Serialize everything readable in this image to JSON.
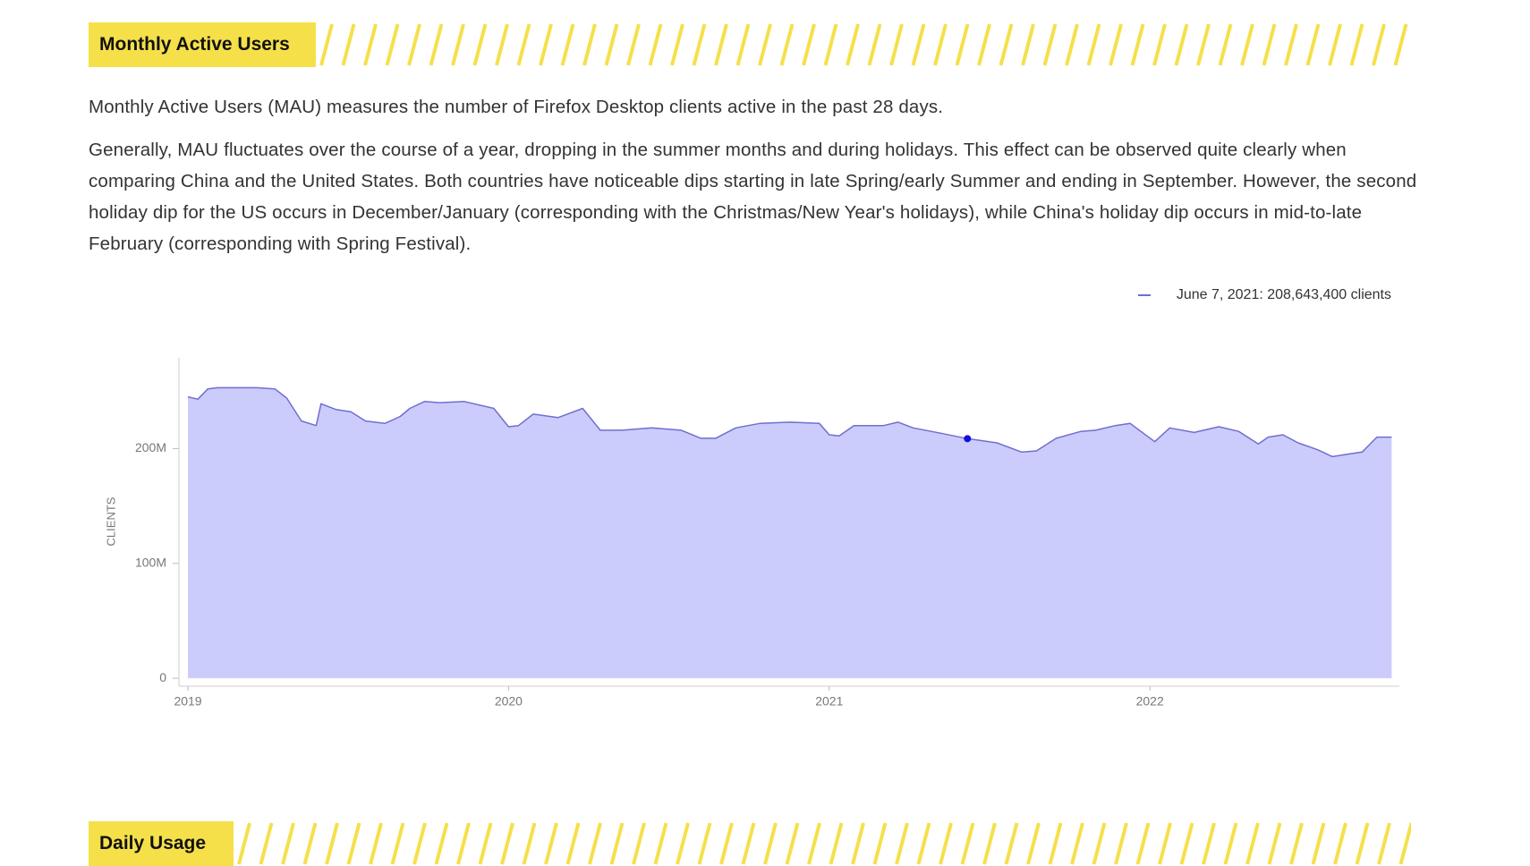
{
  "sections": [
    {
      "heading": "Monthly Active Users",
      "paragraphs": [
        "Monthly Active Users (MAU) measures the number of Firefox Desktop clients active in the past 28 days.",
        "Generally, MAU fluctuates over the course of a year, dropping in the summer months and during holidays. This effect can be observed quite clearly when comparing China and the United States. Both countries have noticeable dips starting in late Spring/early Summer and ending in September. However, the second holiday dip for the US occurs in December/January (corresponding with the Christmas/New Year's holidays), while China's holiday dip occurs in mid-to-late February (corresponding with Spring Festival)."
      ]
    },
    {
      "heading": "Daily Usage"
    }
  ],
  "chart_data": {
    "type": "area",
    "y_label": "CLIENTS",
    "highlight": {
      "label": "June 7, 2021: 208,643,400 clients",
      "x": 2021.431,
      "value": 208643400
    },
    "x": [
      2019.0,
      2019.031,
      2019.062,
      2019.092,
      2019.154,
      2019.215,
      2019.271,
      2019.308,
      2019.354,
      2019.4,
      2019.415,
      2019.462,
      2019.508,
      2019.554,
      2019.615,
      2019.662,
      2019.692,
      2019.738,
      2019.785,
      2019.862,
      2019.954,
      2020.0,
      2020.031,
      2020.077,
      2020.154,
      2020.231,
      2020.286,
      2020.354,
      2020.446,
      2020.538,
      2020.6,
      2020.646,
      2020.708,
      2020.785,
      2020.877,
      2020.969,
      2021.0,
      2021.031,
      2021.077,
      2021.169,
      2021.215,
      2021.262,
      2021.354,
      2021.431,
      2021.523,
      2021.6,
      2021.646,
      2021.708,
      2021.785,
      2021.831,
      2021.892,
      2021.938,
      2022.015,
      2022.062,
      2022.138,
      2022.215,
      2022.277,
      2022.338,
      2022.369,
      2022.415,
      2022.462,
      2022.523,
      2022.569,
      2022.615,
      2022.662,
      2022.708,
      2022.754
    ],
    "series": [
      {
        "name": "clients",
        "color": "#6f6fcf",
        "fill": "#ccccfc",
        "values": [
          245000000,
          243000000,
          252000000,
          253000000,
          253000000,
          253000000,
          252000000,
          244000000,
          224000000,
          220000000,
          239000000,
          234000000,
          232000000,
          224000000,
          222000000,
          228000000,
          235000000,
          241000000,
          240000000,
          241000000,
          235000000,
          219000000,
          220000000,
          230000000,
          227000000,
          235000000,
          216000000,
          216000000,
          218000000,
          216000000,
          209000000,
          209000000,
          218000000,
          222000000,
          223000000,
          222000000,
          212000000,
          211000000,
          220000000,
          220000000,
          223000000,
          218000000,
          213000000,
          208643400,
          205000000,
          197000000,
          198000000,
          209000000,
          215000000,
          216000000,
          220000000,
          222000000,
          206000000,
          218000000,
          214000000,
          219000000,
          215000000,
          204000000,
          210000000,
          212000000,
          205000000,
          199000000,
          193000000,
          195000000,
          197000000,
          210000000,
          210000000
        ]
      }
    ],
    "xlim": [
      2018.972,
      2022.778
    ],
    "xticks": [
      2019,
      2020,
      2021,
      2022
    ],
    "ylim": [
      -6900000,
      279000000
    ],
    "yticks": [
      0,
      {
        "value": 100000000,
        "label": "100M"
      },
      {
        "value": 200000000,
        "label": "200M"
      }
    ]
  }
}
